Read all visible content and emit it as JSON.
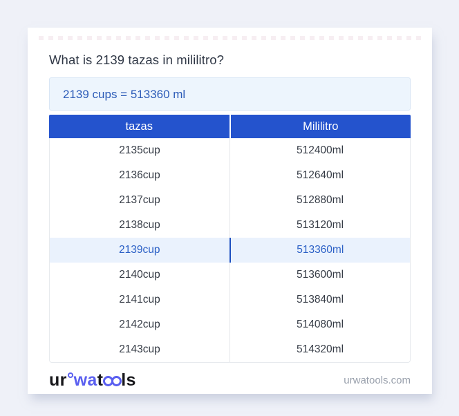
{
  "colors": {
    "page_bg": "#eff1f8",
    "card_bg": "#ffffff",
    "header_blue": "#2453cd",
    "header_text": "#ffffff",
    "row_text": "#363c46",
    "highlight_bg": "#eaf2fd",
    "highlight_text": "#2b60c6",
    "highlight_divider": "#1d4fc0",
    "result_bg": "#edf5fd",
    "result_border": "#d9e6f5",
    "result_text": "#2d5cb8",
    "title_text": "#303846",
    "divider_gray": "#e4e6ea",
    "table_border": "#e7eaee",
    "footer_domain_text": "#99a0ac",
    "logo_dark": "#17171b",
    "logo_blue": "#5a5ff0"
  },
  "page": {
    "title": "What is 2139 tazas in mililitro?"
  },
  "result": {
    "text": "2139 cups = 513360 ml"
  },
  "table": {
    "columns": [
      "tazas",
      "Mililitro"
    ],
    "rows": [
      {
        "tazas": "2135cup",
        "mililitro": "512400ml",
        "highlight": false
      },
      {
        "tazas": "2136cup",
        "mililitro": "512640ml",
        "highlight": false
      },
      {
        "tazas": "2137cup",
        "mililitro": "512880ml",
        "highlight": false
      },
      {
        "tazas": "2138cup",
        "mililitro": "513120ml",
        "highlight": false
      },
      {
        "tazas": "2139cup",
        "mililitro": "513360ml",
        "highlight": true
      },
      {
        "tazas": "2140cup",
        "mililitro": "513600ml",
        "highlight": false
      },
      {
        "tazas": "2141cup",
        "mililitro": "513840ml",
        "highlight": false
      },
      {
        "tazas": "2142cup",
        "mililitro": "514080ml",
        "highlight": false
      },
      {
        "tazas": "2143cup",
        "mililitro": "514320ml",
        "highlight": false
      }
    ]
  },
  "footer": {
    "logo": {
      "part1": "ur",
      "part2": "wa",
      "part3": "t",
      "part4": "ls"
    },
    "domain": "urwatools.com"
  }
}
